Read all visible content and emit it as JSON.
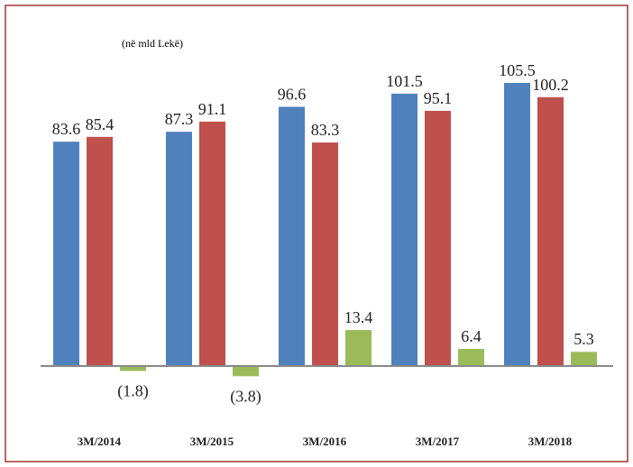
{
  "chart_data": {
    "type": "bar",
    "subtitle": "(në mld Lekë)",
    "categories": [
      "3M/2014",
      "3M/2015",
      "3M/2016",
      "3M/2017",
      "3M/2018"
    ],
    "series": [
      {
        "color": "#4f81bd",
        "values": [
          83.6,
          87.3,
          96.6,
          101.5,
          105.5
        ]
      },
      {
        "color": "#c0504d",
        "values": [
          85.4,
          91.1,
          83.3,
          95.1,
          100.2
        ]
      },
      {
        "color": "#9bbb59",
        "values": [
          -1.8,
          -3.8,
          13.4,
          6.4,
          5.3
        ],
        "value_labels": [
          "(1.8)",
          "(3.8)",
          "13.4",
          "6.4",
          "5.3"
        ]
      }
    ]
  }
}
